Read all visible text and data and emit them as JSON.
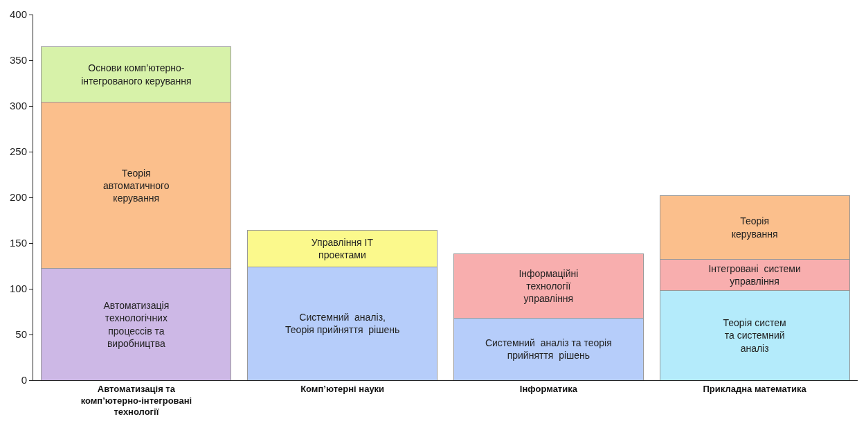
{
  "chart_data": {
    "type": "bar",
    "stacked": true,
    "categories": [
      "Автоматизація та\nкомп’ютерно-інтегровані\nтехнології",
      "Комп’ютерні науки",
      "Інформатика",
      "Прикладна математика"
    ],
    "series": [
      {
        "colors": [
          "#cdb8e6",
          "#b6cdfa",
          "#b6cdfa",
          "#b4ebfb"
        ],
        "values": [
          122,
          124,
          68,
          98
        ],
        "value_labels": [
          "Автоматизація\nтехнологічних\nпроцессів та\nвиробництва",
          "Системний  аналіз,\nТеорія прийняття  рішень",
          "Системний  аналіз та теорія\nприйняття  рішень",
          "Теорія систем\nта системний\nаналіз"
        ]
      },
      {
        "colors": [
          "#fbbf8c",
          "#fbf98c",
          "#f8aeae",
          "#f8aeae"
        ],
        "values": [
          182,
          40,
          70,
          34
        ],
        "value_labels": [
          "Теорія\nавтоматичного\nкерування",
          "Управління IT\nпроектами",
          "Інформаційні\nтехнології\nуправління",
          "Інтегровані  системи\nуправління"
        ]
      },
      {
        "colors": [
          "#d7f2a9",
          null,
          null,
          "#fbbf8c"
        ],
        "values": [
          61,
          null,
          null,
          70
        ],
        "value_labels": [
          "Основи комп’ютерно-\nінтегрованого керування",
          null,
          null,
          "Теорія\nкерування"
        ]
      }
    ],
    "ylim": [
      0,
      400
    ],
    "yticks": [
      0,
      50,
      100,
      150,
      200,
      250,
      300,
      350,
      400
    ],
    "grid": false
  }
}
